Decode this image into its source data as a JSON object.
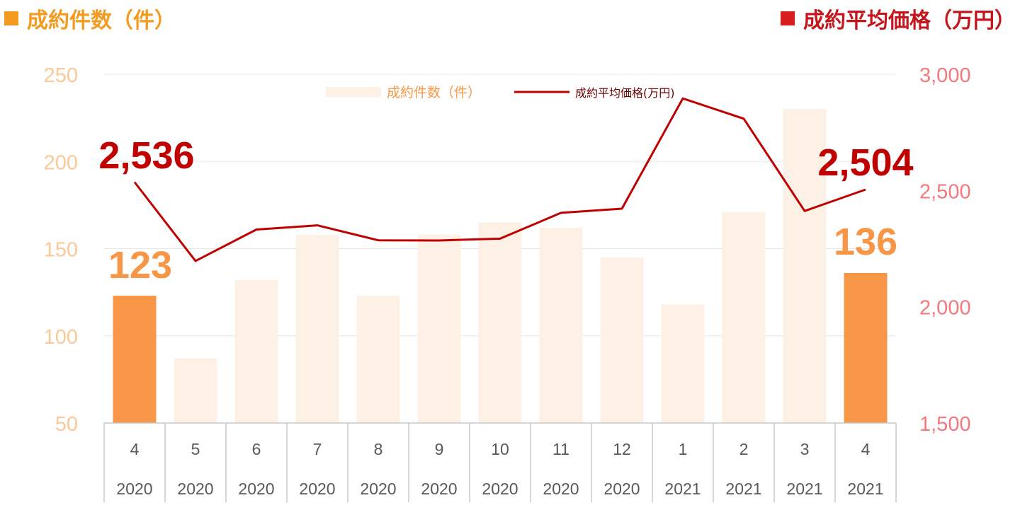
{
  "headers": {
    "left": "成約件数（件）",
    "right": "成約平均価格（万円）"
  },
  "colors": {
    "bar_faded": "#fdf1e6",
    "bar_highlight": "#f79646",
    "left_axis_text": "#fbc898",
    "right_axis_text": "#f4787c",
    "line": "#c00000",
    "header_left": "#f39a1f",
    "header_right": "#c4161c",
    "grid": "#e6e6e6",
    "axis_box": "#c8c8c8",
    "tick_text": "#595959"
  },
  "chart_data": {
    "type": "bar+line",
    "categories": [
      {
        "month": "4",
        "year": "2020"
      },
      {
        "month": "5",
        "year": "2020"
      },
      {
        "month": "6",
        "year": "2020"
      },
      {
        "month": "7",
        "year": "2020"
      },
      {
        "month": "8",
        "year": "2020"
      },
      {
        "month": "9",
        "year": "2020"
      },
      {
        "month": "10",
        "year": "2020"
      },
      {
        "month": "11",
        "year": "2020"
      },
      {
        "month": "12",
        "year": "2020"
      },
      {
        "month": "1",
        "year": "2021"
      },
      {
        "month": "2",
        "year": "2021"
      },
      {
        "month": "3",
        "year": "2021"
      },
      {
        "month": "4",
        "year": "2021"
      }
    ],
    "series": [
      {
        "name": "成約件数（件）",
        "type": "bar",
        "axis": "left",
        "values": [
          123,
          87,
          132,
          158,
          123,
          158,
          165,
          162,
          145,
          118,
          171,
          230,
          136
        ],
        "highlight": [
          0,
          12
        ]
      },
      {
        "name": "成約平均価格(万円)",
        "type": "line",
        "axis": "right",
        "values": [
          2536,
          2197,
          2332,
          2350,
          2286,
          2285,
          2293,
          2404,
          2422,
          2896,
          2809,
          2412,
          2504
        ]
      }
    ],
    "left_axis": {
      "min": 50,
      "max": 250,
      "ticks": [
        "50",
        "100",
        "150",
        "200",
        "250"
      ]
    },
    "right_axis": {
      "min": 1500,
      "max": 3000,
      "ticks": [
        "1,500",
        "2,000",
        "2,500",
        "3,000"
      ]
    },
    "annotations": [
      {
        "series": 1,
        "index": 0,
        "text": "2,536"
      },
      {
        "series": 1,
        "index": 12,
        "text": "2,504"
      },
      {
        "series": 0,
        "index": 0,
        "text": "123"
      },
      {
        "series": 0,
        "index": 12,
        "text": "136"
      }
    ],
    "legend": {
      "position": "top-center",
      "entries": [
        "成約件数（件）",
        "成約平均価格(万円)"
      ]
    },
    "grid": true
  }
}
